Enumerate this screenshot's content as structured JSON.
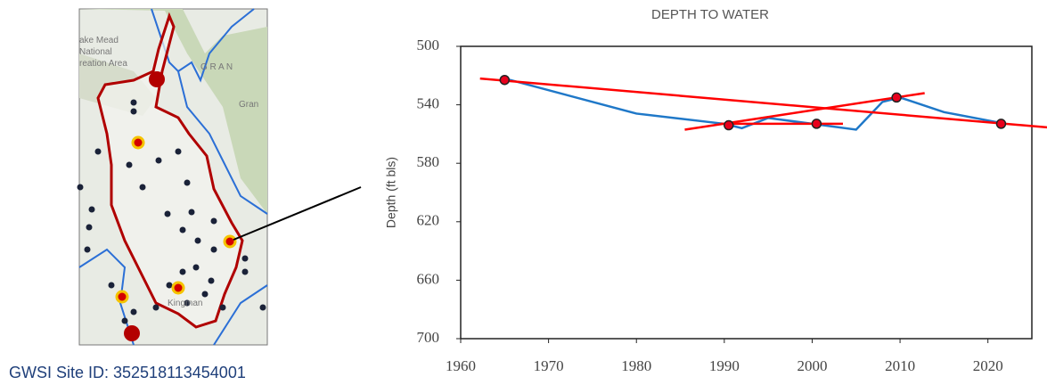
{
  "caption": "GWSI Site ID: 352518113454001",
  "map": {
    "labels": [
      "ake Mead",
      "National",
      "reation Area",
      "G R A N",
      "Gran",
      "Kingman"
    ]
  },
  "chart_data": {
    "type": "line",
    "title": "DEPTH TO WATER",
    "y_label": "Depth (ft bls)",
    "xlim": [
      1960,
      2025
    ],
    "xticks": [
      1960,
      1970,
      1980,
      1990,
      2000,
      2010,
      2020
    ],
    "ylim": [
      500,
      700
    ],
    "yticks": [
      500,
      540,
      580,
      620,
      660,
      700
    ],
    "y_inverted": true,
    "series": [
      {
        "color": "#1f78c8",
        "x": [
          1965,
          1980,
          1990,
          1992,
          1995,
          2000,
          2005,
          2008,
          2010,
          2015,
          2022
        ],
        "values": [
          522,
          546,
          553,
          556,
          549,
          553,
          557,
          538,
          535,
          545,
          553
        ]
      }
    ],
    "points": {
      "color": "#e8001c",
      "x": [
        1965,
        1990.5,
        2000.5,
        2009.6,
        2021.5
      ],
      "values": [
        523,
        554,
        553,
        535,
        553
      ]
    },
    "trend_lines": [
      {
        "color": "#ff0000",
        "x": [
          1962.2,
          2027.8
        ],
        "values": [
          522,
          556
        ]
      },
      {
        "color": "#ff0000",
        "x": [
          1985.5,
          2012.8
        ],
        "values": [
          557,
          532
        ]
      },
      {
        "color": "#ff0000",
        "x": [
          1989.6,
          2003.5
        ],
        "values": [
          553,
          553
        ]
      }
    ]
  }
}
